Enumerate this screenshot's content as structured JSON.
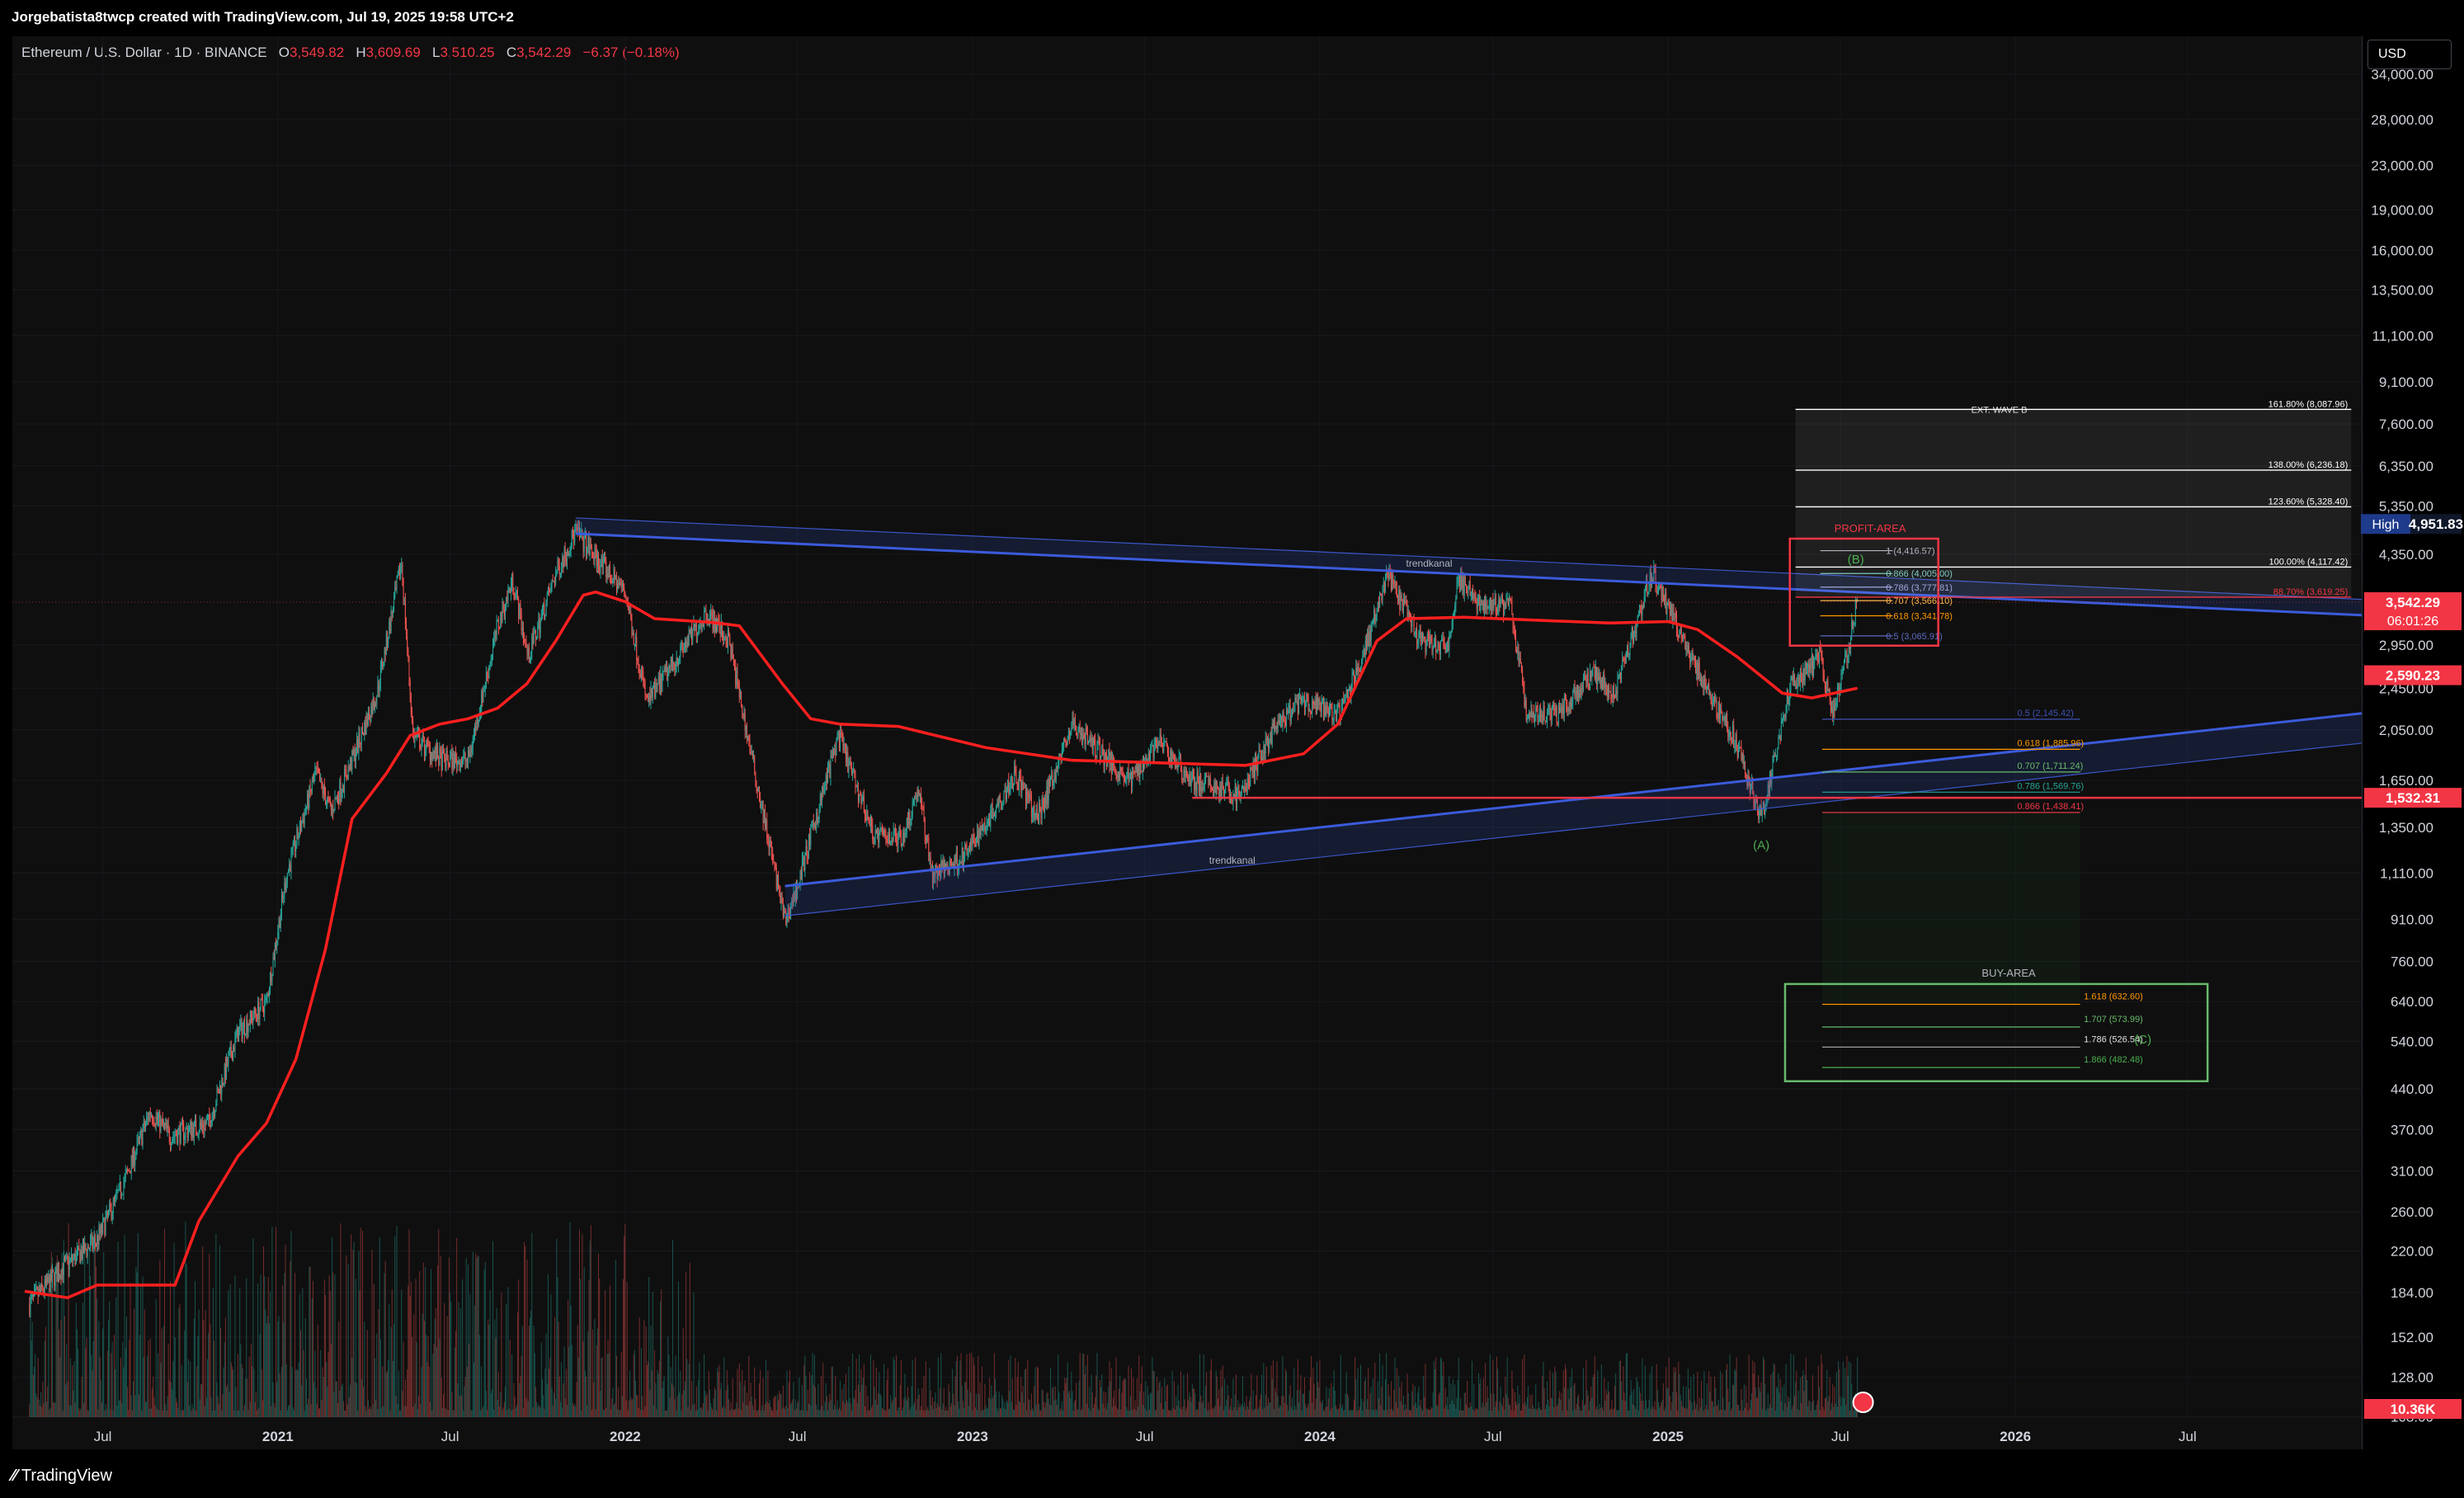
{
  "header": {
    "title": "Jorgebatista8twcp created with TradingView.com, Jul 19, 2025 19:58 UTC+2"
  },
  "legend": {
    "symbol": "Ethereum / U.S. Dollar · 1D · BINANCE",
    "o_label": "O",
    "o": "3,549.82",
    "h_label": "H",
    "h": "3,609.69",
    "l_label": "L",
    "l": "3,510.25",
    "c_label": "C",
    "c": "3,542.29",
    "change": "−6.37 (−0.18%)"
  },
  "currency_button": "USD",
  "footer": {
    "brand": "TradingView"
  },
  "colors": {
    "background": "#0f0f0f",
    "up": "#26a69a",
    "down": "#ef5350",
    "ma": "#ff1f1f",
    "trend": "#3b5bdb",
    "buy_box": "#66bb6a",
    "profit_box": "#f23645"
  },
  "chart_data": {
    "type": "candlestick",
    "y_scale": "log",
    "ylim": [
      94,
      40000
    ],
    "price_ticks": [
      "34,000.00",
      "28,000.00",
      "23,000.00",
      "19,000.00",
      "16,000.00",
      "13,500.00",
      "11,100.00",
      "9,100.00",
      "7,600.00",
      "6,350.00",
      "5,350.00",
      "4,350.00",
      "2,950.00",
      "2,450.00",
      "2,050.00",
      "1,650.00",
      "1,350.00",
      "1,110.00",
      "910.00",
      "760.00",
      "640.00",
      "540.00",
      "440.00",
      "370.00",
      "310.00",
      "260.00",
      "220.00",
      "184.00",
      "152.00",
      "128.00",
      "108.00"
    ],
    "time_ticks": [
      "Jul",
      "2021",
      "Jul",
      "2022",
      "Jul",
      "2023",
      "Jul",
      "2024",
      "Jul",
      "2025",
      "Jul",
      "2026",
      "Jul"
    ],
    "price_tags": [
      {
        "label": "High",
        "value": "4,951.83",
        "price": 4951.83
      },
      {
        "label": "",
        "value": "3,542.29",
        "sub": "06:01:26",
        "price": 3542.29
      },
      {
        "label": "",
        "value": "2,590.23",
        "price": 2590.23
      },
      {
        "label": "",
        "value": "1,532.31",
        "price": 1532.31
      }
    ],
    "volume_tag": "10.36K",
    "ohlc_anchor_path": [
      [
        "2020-04-15",
        175
      ],
      [
        "2020-05-20",
        205
      ],
      [
        "2020-06-25",
        230
      ],
      [
        "2020-07-25",
        300
      ],
      [
        "2020-08-20",
        400
      ],
      [
        "2020-09-10",
        360
      ],
      [
        "2020-10-20",
        380
      ],
      [
        "2020-11-20",
        560
      ],
      [
        "2020-12-20",
        640
      ],
      [
        "2021-01-10",
        1100
      ],
      [
        "2021-02-10",
        1700
      ],
      [
        "2021-02-26",
        1450
      ],
      [
        "2021-03-20",
        1800
      ],
      [
        "2021-04-15",
        2400
      ],
      [
        "2021-05-11",
        4200
      ],
      [
        "2021-05-23",
        2000
      ],
      [
        "2021-06-22",
        1800
      ],
      [
        "2021-07-20",
        1800
      ],
      [
        "2021-08-20",
        3200
      ],
      [
        "2021-09-05",
        3900
      ],
      [
        "2021-09-21",
        2800
      ],
      [
        "2021-10-20",
        4000
      ],
      [
        "2021-11-10",
        4800
      ],
      [
        "2021-12-05",
        4200
      ],
      [
        "2022-01-01",
        3700
      ],
      [
        "2022-01-24",
        2300
      ],
      [
        "2022-03-28",
        3400
      ],
      [
        "2022-04-20",
        3000
      ],
      [
        "2022-05-12",
        1900
      ],
      [
        "2022-06-18",
        900
      ],
      [
        "2022-07-01",
        1050
      ],
      [
        "2022-08-13",
        2000
      ],
      [
        "2022-09-20",
        1300
      ],
      [
        "2022-10-20",
        1300
      ],
      [
        "2022-11-05",
        1600
      ],
      [
        "2022-11-20",
        1100
      ],
      [
        "2022-12-25",
        1200
      ],
      [
        "2023-02-15",
        1700
      ],
      [
        "2023-03-10",
        1400
      ],
      [
        "2023-04-16",
        2100
      ],
      [
        "2023-06-15",
        1650
      ],
      [
        "2023-07-15",
        1950
      ],
      [
        "2023-08-20",
        1650
      ],
      [
        "2023-10-10",
        1550
      ],
      [
        "2023-11-10",
        2000
      ],
      [
        "2023-12-10",
        2300
      ],
      [
        "2024-01-23",
        2200
      ],
      [
        "2024-02-20",
        3000
      ],
      [
        "2024-03-12",
        4000
      ],
      [
        "2024-04-15",
        3000
      ],
      [
        "2024-05-15",
        2900
      ],
      [
        "2024-05-25",
        3900
      ],
      [
        "2024-06-20",
        3500
      ],
      [
        "2024-07-20",
        3500
      ],
      [
        "2024-08-05",
        2200
      ],
      [
        "2024-09-06",
        2200
      ],
      [
        "2024-10-15",
        2600
      ],
      [
        "2024-11-05",
        2400
      ],
      [
        "2024-12-15",
        4000
      ],
      [
        "2025-01-10",
        3200
      ],
      [
        "2025-02-03",
        2600
      ],
      [
        "2025-03-10",
        2000
      ],
      [
        "2025-04-09",
        1400
      ],
      [
        "2025-05-10",
        2500
      ],
      [
        "2025-06-10",
        2800
      ],
      [
        "2025-06-22",
        2200
      ],
      [
        "2025-07-01",
        2500
      ],
      [
        "2025-07-19",
        3542
      ]
    ],
    "moving_average_path": [
      [
        "2020-04-10",
        185
      ],
      [
        "2020-05-25",
        180
      ],
      [
        "2020-06-25",
        190
      ],
      [
        "2020-08-15",
        190
      ],
      [
        "2020-09-15",
        190
      ],
      [
        "2020-10-10",
        250
      ],
      [
        "2020-11-20",
        330
      ],
      [
        "2020-12-20",
        380
      ],
      [
        "2021-01-20",
        500
      ],
      [
        "2021-02-20",
        800
      ],
      [
        "2021-03-20",
        1400
      ],
      [
        "2021-04-25",
        1700
      ],
      [
        "2021-05-20",
        2000
      ],
      [
        "2021-06-20",
        2100
      ],
      [
        "2021-07-20",
        2150
      ],
      [
        "2021-08-20",
        2250
      ],
      [
        "2021-09-20",
        2500
      ],
      [
        "2021-10-20",
        3000
      ],
      [
        "2021-11-18",
        3650
      ],
      [
        "2021-12-01",
        3700
      ],
      [
        "2022-01-01",
        3550
      ],
      [
        "2022-02-01",
        3300
      ],
      [
        "2022-04-01",
        3250
      ],
      [
        "2022-05-01",
        3200
      ],
      [
        "2022-06-15",
        2500
      ],
      [
        "2022-07-15",
        2150
      ],
      [
        "2022-08-15",
        2100
      ],
      [
        "2022-10-15",
        2080
      ],
      [
        "2023-01-15",
        1900
      ],
      [
        "2023-04-15",
        1800
      ],
      [
        "2023-07-15",
        1780
      ],
      [
        "2023-10-15",
        1760
      ],
      [
        "2023-12-15",
        1850
      ],
      [
        "2024-01-20",
        2100
      ],
      [
        "2024-03-01",
        3000
      ],
      [
        "2024-04-01",
        3300
      ],
      [
        "2024-06-01",
        3320
      ],
      [
        "2024-09-01",
        3270
      ],
      [
        "2024-11-01",
        3240
      ],
      [
        "2025-01-01",
        3260
      ],
      [
        "2025-02-01",
        3150
      ],
      [
        "2025-03-15",
        2800
      ],
      [
        "2025-05-01",
        2400
      ],
      [
        "2025-06-01",
        2350
      ],
      [
        "2025-07-19",
        2450
      ]
    ],
    "trendlines": [
      {
        "label": "trendkanal",
        "from": [
          "2021-11-10",
          4750
        ],
        "to": [
          "2026-12-31",
          3350
        ],
        "channel_offset_pct": 7
      },
      {
        "label": "trendkanal",
        "from": [
          "2022-06-18",
          1050
        ],
        "to": [
          "2026-12-31",
          2200
        ],
        "channel_offset_pct": -12
      }
    ],
    "horizontal_lines": [
      {
        "price": 1532.31,
        "from": "2023-08-20",
        "color": "#f23645"
      }
    ],
    "ext_wave_b": {
      "title": "EXT. WAVE B",
      "levels": [
        {
          "label": "161.80% (8,087.96)",
          "price": 8087.96
        },
        {
          "label": "138.00% (6,236.18)",
          "price": 6236.18
        },
        {
          "label": "123.60% (5,328.40)",
          "price": 5328.4
        },
        {
          "label": "100.00% (4,117.42)",
          "price": 4117.42
        },
        {
          "label": "88.70% (3,619.25)",
          "price": 3619.25
        }
      ]
    },
    "profit_area": {
      "title": "PROFIT-AREA",
      "wave_label": "(B)",
      "levels": [
        {
          "label": "1 (4,416.57)",
          "price": 4416.57
        },
        {
          "label": "0.866 (4,005.00)",
          "price": 4005.0
        },
        {
          "label": "0.786 (3,777.81)",
          "price": 3777.81
        },
        {
          "label": "0.707 (3,566.10)",
          "price": 3566.1
        },
        {
          "label": "0.618 (3,341.78)",
          "price": 3341.78
        },
        {
          "label": "0.5 (3,065.91)",
          "price": 3065.91
        }
      ]
    },
    "retracement": {
      "wave_label": "(A)",
      "levels": [
        {
          "label": "0.5 (2,145.42)",
          "price": 2145.42
        },
        {
          "label": "0.618 (1,885.96)",
          "price": 1885.96
        },
        {
          "label": "0.707 (1,711.24)",
          "price": 1711.24
        },
        {
          "label": "0.786 (1,569.76)",
          "price": 1569.76
        },
        {
          "label": "0.866 (1,438.41)",
          "price": 1438.41
        }
      ]
    },
    "buy_area": {
      "title": "BUY-AREA",
      "wave_label": "(C)",
      "levels": [
        {
          "label": "1.618 (632.60)",
          "price": 632.6
        },
        {
          "label": "1.707 (573.99)",
          "price": 573.99
        },
        {
          "label": "1.786 (526.54)",
          "price": 526.54
        },
        {
          "label": "1.866 (482.48)",
          "price": 482.48
        }
      ]
    }
  }
}
